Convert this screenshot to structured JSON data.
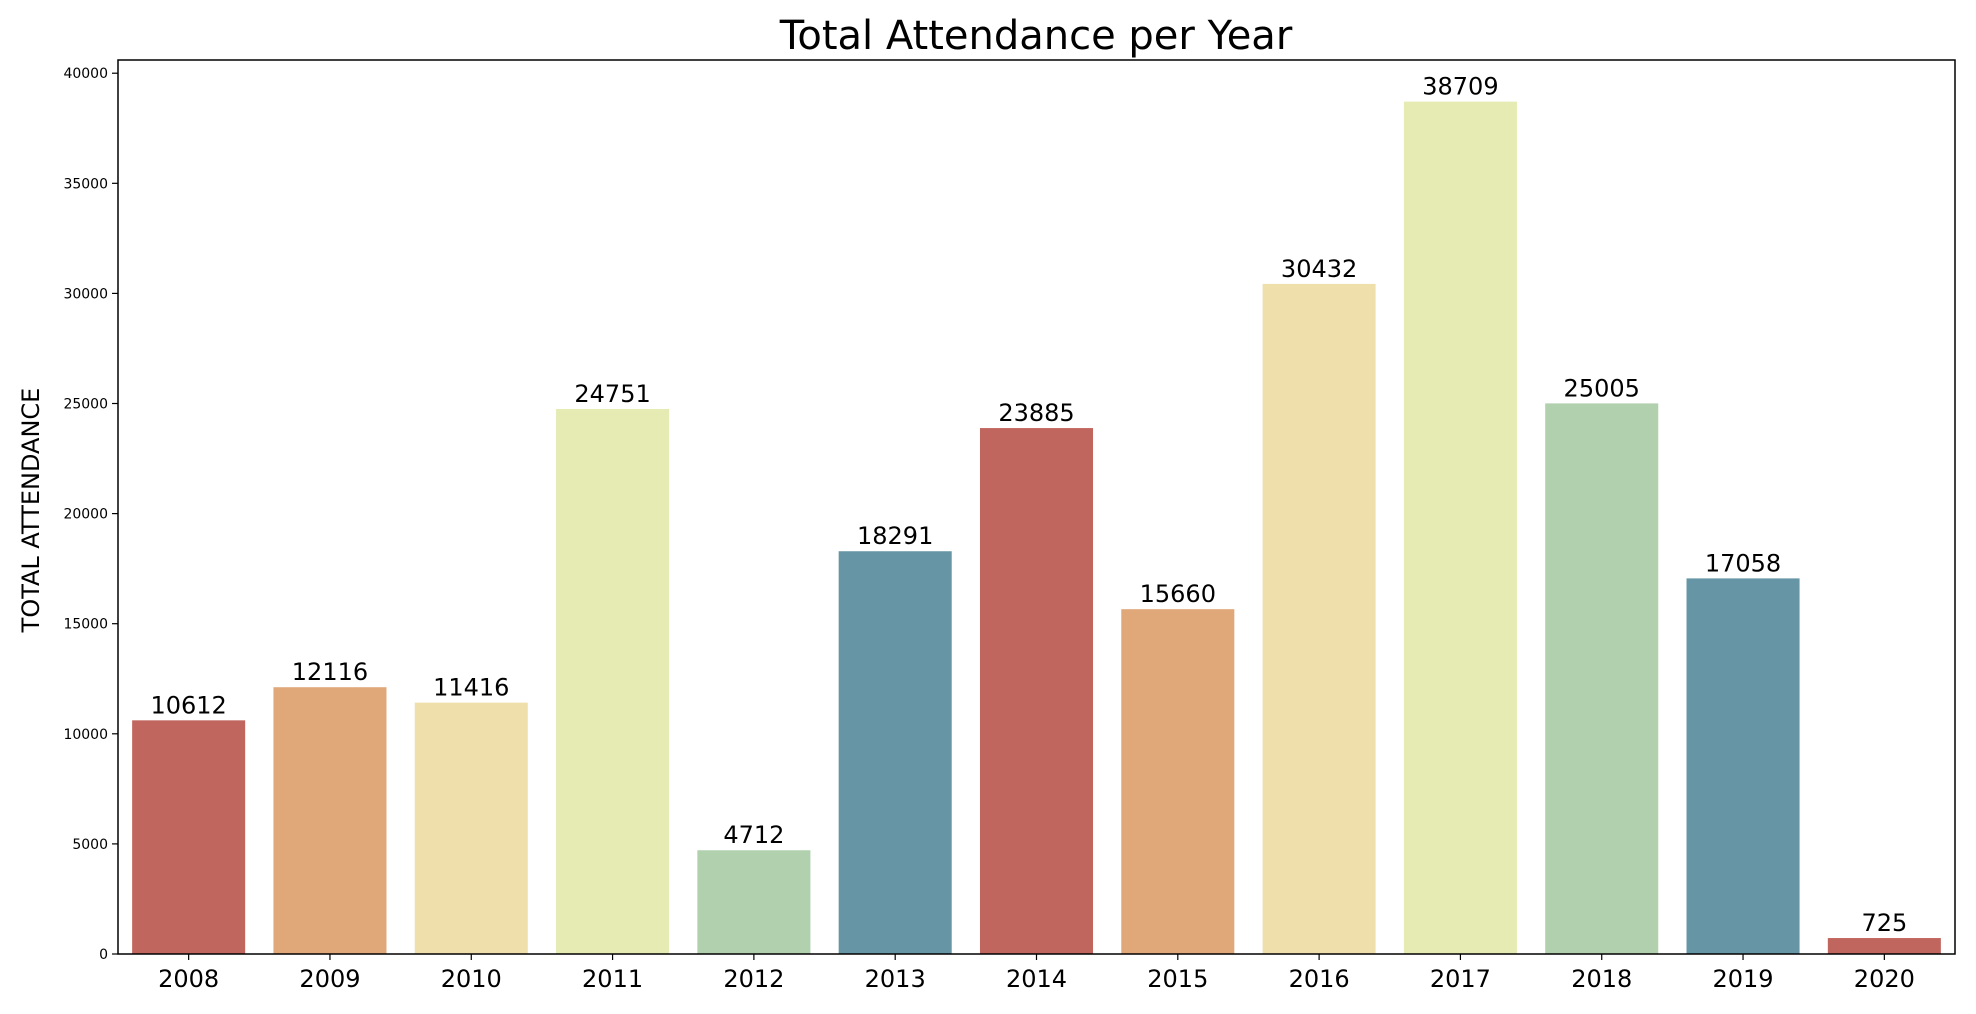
{
  "chart_data": {
    "type": "bar",
    "title": "Total Attendance per Year",
    "xlabel": "",
    "ylabel": "TOTAL ATTENDANCE",
    "categories": [
      "2008",
      "2009",
      "2010",
      "2011",
      "2012",
      "2013",
      "2014",
      "2015",
      "2016",
      "2017",
      "2018",
      "2019",
      "2020"
    ],
    "values": [
      10612,
      12116,
      11416,
      24751,
      4712,
      18291,
      23885,
      15660,
      30432,
      38709,
      25005,
      17058,
      725
    ],
    "data_labels": [
      "10612",
      "12116",
      "11416",
      "24751",
      "4712",
      "18291",
      "23885",
      "15660",
      "30432",
      "38709",
      "25005",
      "17058",
      "725"
    ],
    "bar_colors": [
      "#c1665e",
      "#e0a878",
      "#efe0ab",
      "#e5ebb3",
      "#b0d0ae",
      "#6696a5",
      "#c1665e",
      "#e0a878",
      "#efe0ab",
      "#e5ebb3",
      "#b0d0ae",
      "#6696a5",
      "#c1665e"
    ],
    "ylim": [
      0,
      40600
    ],
    "yticks": [
      0,
      5000,
      10000,
      15000,
      20000,
      25000,
      30000,
      35000,
      40000
    ],
    "ytick_labels": [
      "0",
      "5000",
      "10000",
      "15000",
      "20000",
      "25000",
      "30000",
      "35000",
      "40000"
    ],
    "grid": false,
    "legend": "none"
  }
}
